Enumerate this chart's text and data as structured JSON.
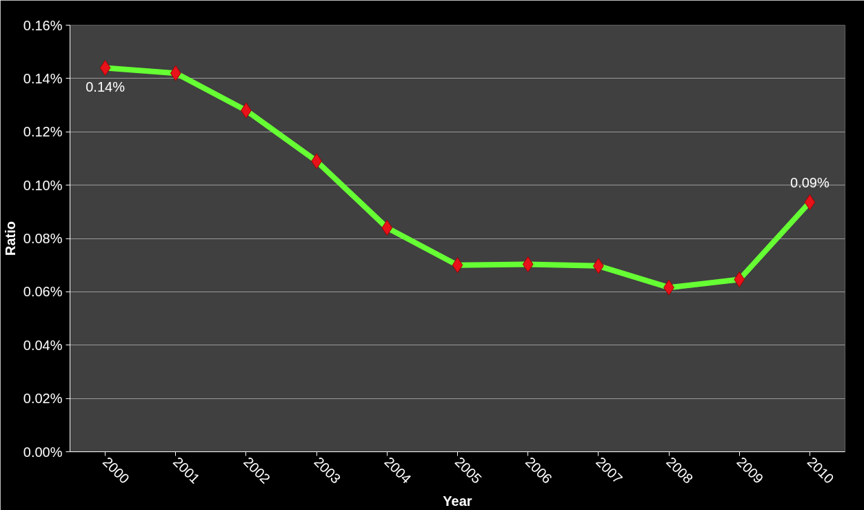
{
  "chart_data": {
    "type": "line",
    "xlabel": "Year",
    "ylabel": "Ratio",
    "categories": [
      "2000",
      "2001",
      "2002",
      "2003",
      "2004",
      "2005",
      "2006",
      "2007",
      "2008",
      "2009",
      "2010"
    ],
    "series": [
      {
        "color": "#66ff33",
        "values": [
          0.144,
          0.142,
          0.128,
          0.109,
          0.084,
          0.07,
          0.0703,
          0.0697,
          0.0616,
          0.0646,
          0.0936
        ],
        "value_labels": [
          "0.14%",
          null,
          null,
          null,
          null,
          null,
          null,
          null,
          null,
          null,
          "0.09%"
        ]
      }
    ],
    "ylim": [
      0,
      0.16
    ],
    "yticks": [
      {
        "value": 0,
        "label": "0.00%"
      },
      {
        "value": 0.02,
        "label": "0.02%"
      },
      {
        "value": 0.04,
        "label": "0.04%"
      },
      {
        "value": 0.06,
        "label": "0.06%"
      },
      {
        "value": 0.08,
        "label": "0.08%"
      },
      {
        "value": 0.1,
        "label": "0.10%"
      },
      {
        "value": 0.12,
        "label": "0.12%"
      },
      {
        "value": 0.14,
        "label": "0.14%"
      },
      {
        "value": 0.16,
        "label": "0.16%"
      }
    ],
    "grid": "y",
    "marker": "diamond",
    "line_style": "solid"
  }
}
